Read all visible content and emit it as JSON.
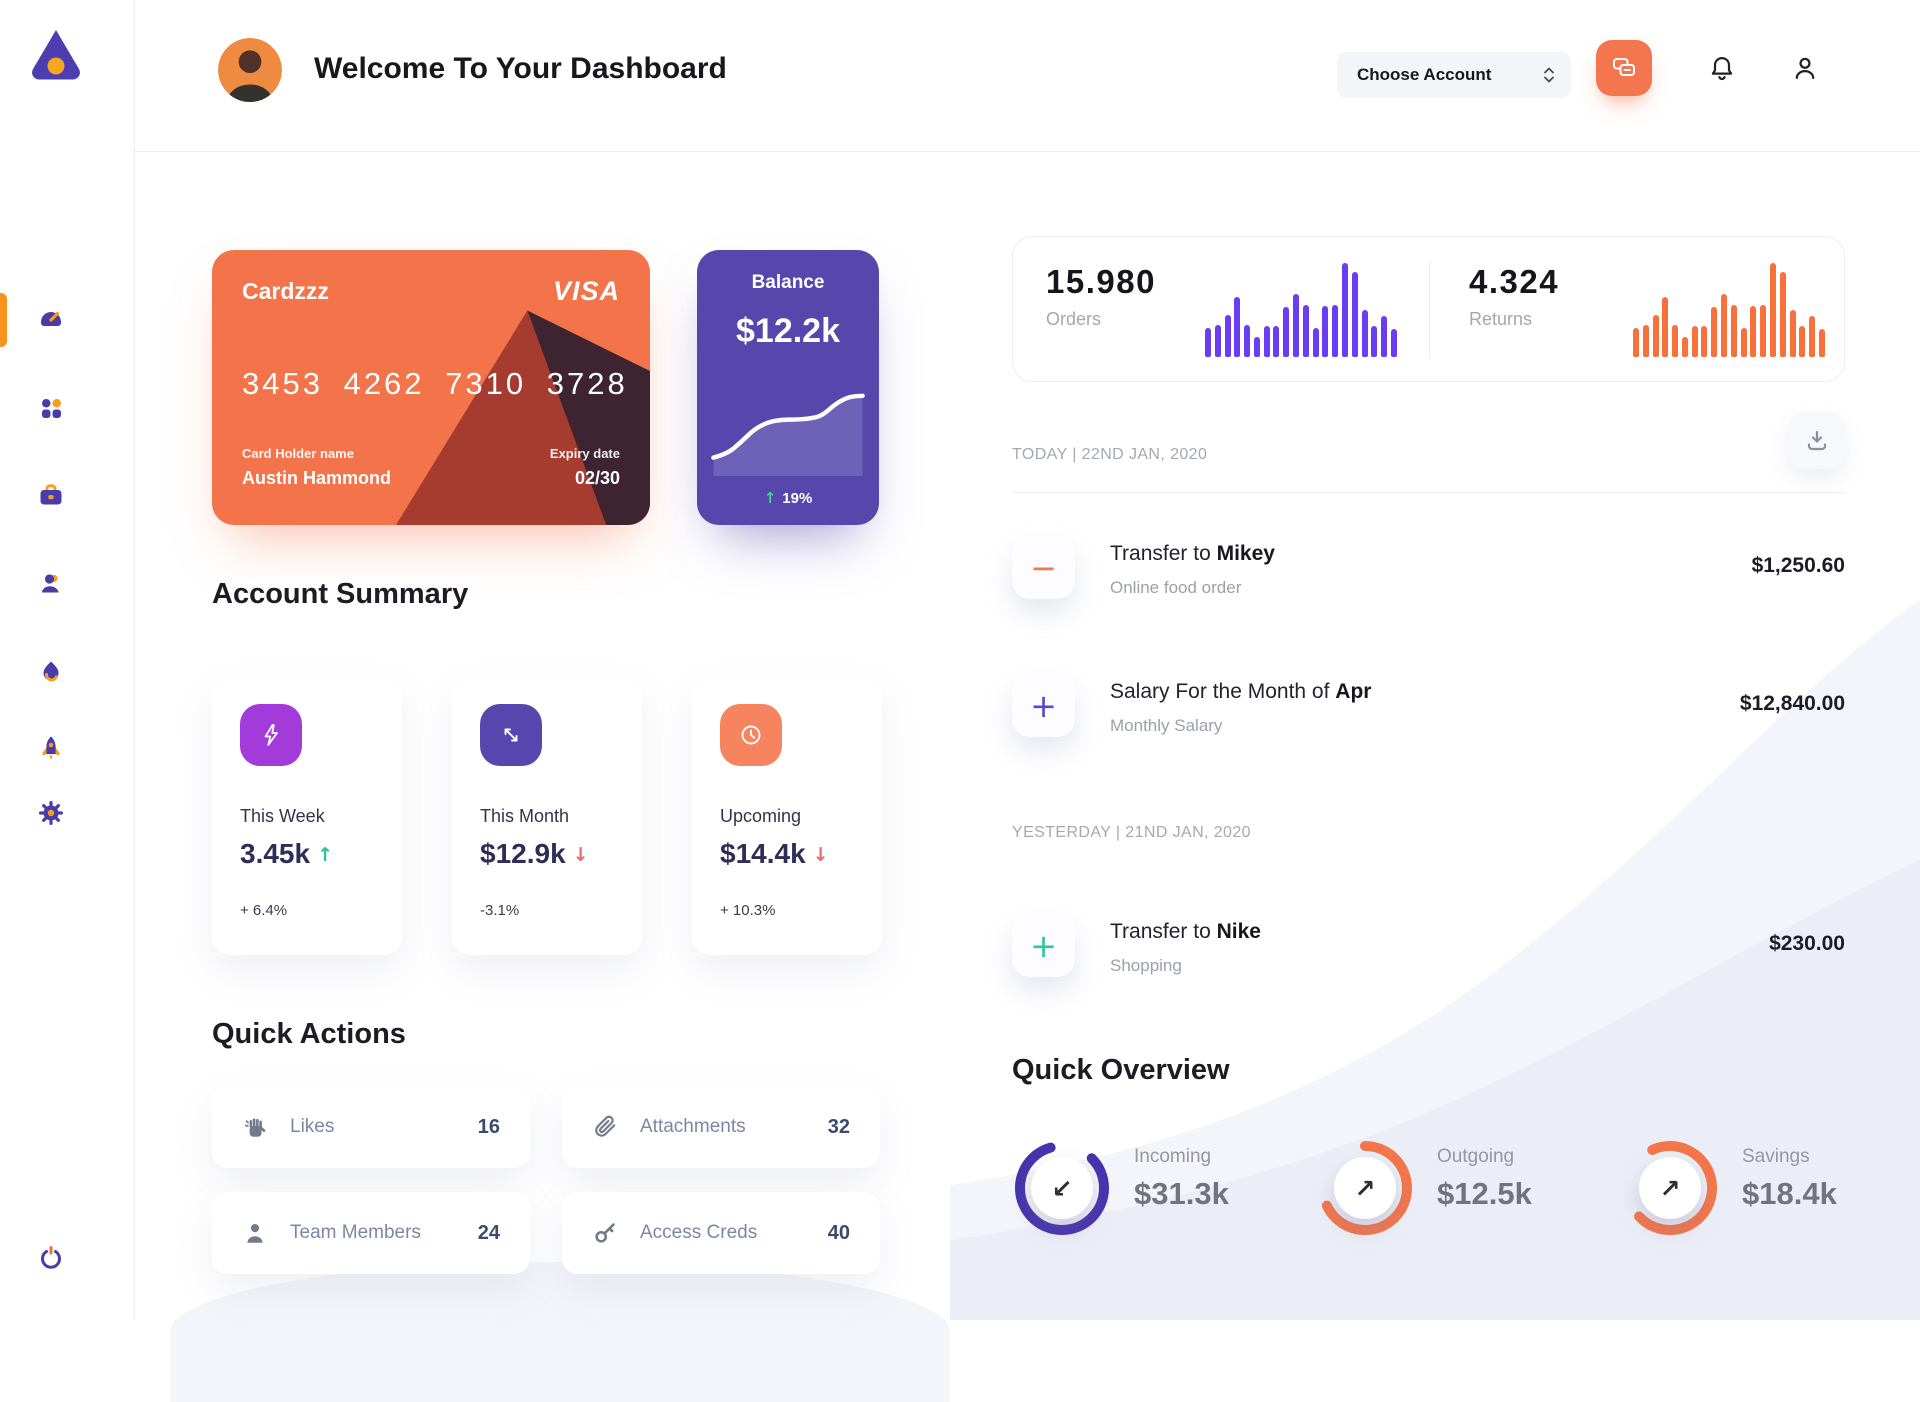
{
  "header": {
    "title": "Welcome To Your Dashboard",
    "account_select_label": "Choose Account"
  },
  "sidebar": {
    "items": [
      "dashboard",
      "apps",
      "work",
      "team",
      "activity",
      "launch",
      "settings"
    ],
    "logout": "logout"
  },
  "credit_card": {
    "name": "Cardzzz",
    "brand": "VISA",
    "number": "3453 4262 7310 3728",
    "holder_label": "Card Holder name",
    "holder_name": "Austin Hammond",
    "expiry_label": "Expiry date",
    "expiry": "02/30"
  },
  "balance_card": {
    "title": "Balance",
    "value": "$12.2k",
    "delta": "19%",
    "delta_arrow": "↑",
    "delta_color": "#3ed598"
  },
  "stats": {
    "orders": {
      "value": "15.980",
      "label": "Orders"
    },
    "returns": {
      "value": "4.324",
      "label": "Returns"
    }
  },
  "chart_data": [
    {
      "type": "bar",
      "name": "orders-sparkline",
      "values": [
        31,
        34,
        45,
        64,
        34,
        21,
        33,
        33,
        53,
        67,
        55,
        31,
        54,
        55,
        100,
        90,
        50,
        33,
        44,
        30
      ],
      "color": "#6a3df2"
    },
    {
      "type": "bar",
      "name": "returns-sparkline",
      "values": [
        31,
        34,
        45,
        64,
        34,
        21,
        33,
        33,
        53,
        67,
        55,
        31,
        54,
        55,
        100,
        90,
        50,
        33,
        44,
        30
      ],
      "color": "#f8703a"
    },
    {
      "type": "line",
      "name": "balance-trend",
      "values": [
        13,
        17,
        30,
        45,
        53,
        56,
        56,
        57,
        60,
        74,
        82,
        83
      ],
      "color": "#ffffff"
    },
    {
      "type": "donut",
      "name": "incoming-ring",
      "percent": 83,
      "color": "#4733ae"
    },
    {
      "type": "donut",
      "name": "outgoing-ring",
      "percent": 68,
      "color": "#f4764a"
    },
    {
      "type": "donut",
      "name": "savings-ring",
      "percent": 70,
      "color": "#f4764a"
    }
  ],
  "account_summary": {
    "title": "Account Summary",
    "cards": [
      {
        "icon": "lightning-icon",
        "icon_bg": "#a33bdb",
        "label": "This Week",
        "value": "3.45k",
        "trend_arrow": "↑",
        "trend_color": "#2fbf90",
        "delta": "+ 6.4%"
      },
      {
        "icon": "trend-arrows-icon",
        "icon_bg": "#5746ae",
        "label": "This Month",
        "value": "$12.9k",
        "trend_arrow": "↓",
        "trend_color": "#ee6a6a",
        "delta": "-3.1%"
      },
      {
        "icon": "clock-icon",
        "icon_bg": "#f5845f",
        "label": "Upcoming",
        "value": "$14.4k",
        "trend_arrow": "↓",
        "trend_color": "#ee6a6a",
        "delta": "+ 10.3%"
      }
    ]
  },
  "quick_actions": {
    "title": "Quick Actions",
    "items": [
      {
        "icon": "hand-icon",
        "label": "Likes",
        "count": "16"
      },
      {
        "icon": "paperclip-icon",
        "label": "Attachments",
        "count": "32"
      },
      {
        "icon": "member-icon",
        "label": "Team Members",
        "count": "24"
      },
      {
        "icon": "key-icon",
        "label": "Access Creds",
        "count": "40"
      }
    ]
  },
  "transactions": {
    "groups": [
      {
        "date_label": "TODAY | 22ND JAN, 2020",
        "items": [
          {
            "symbol": "−",
            "symbol_color": "#f4764a",
            "title": "Transfer to ",
            "title_bold": "Mikey",
            "subtitle": "Online food order",
            "amount": "$1,250.60"
          },
          {
            "symbol": "+",
            "symbol_color": "#5a46c8",
            "title": "Salary For the Month of ",
            "title_bold": "Apr",
            "subtitle": "Monthly Salary",
            "amount": "$12,840.00"
          }
        ]
      },
      {
        "date_label": "YESTERDAY | 21ND JAN, 2020",
        "items": [
          {
            "symbol": "+",
            "symbol_color": "#2ec5a2",
            "title": "Transfer to ",
            "title_bold": "Nike",
            "subtitle": "Shopping",
            "amount": "$230.00"
          }
        ]
      }
    ]
  },
  "quick_overview": {
    "title": "Quick Overview",
    "items": [
      {
        "label": "Incoming",
        "value": "$31.3k",
        "arrow_glyph": "↙"
      },
      {
        "label": "Outgoing",
        "value": "$12.5k",
        "arrow_glyph": "↗"
      },
      {
        "label": "Savings",
        "value": "$18.4k",
        "arrow_glyph": "↗"
      }
    ]
  }
}
